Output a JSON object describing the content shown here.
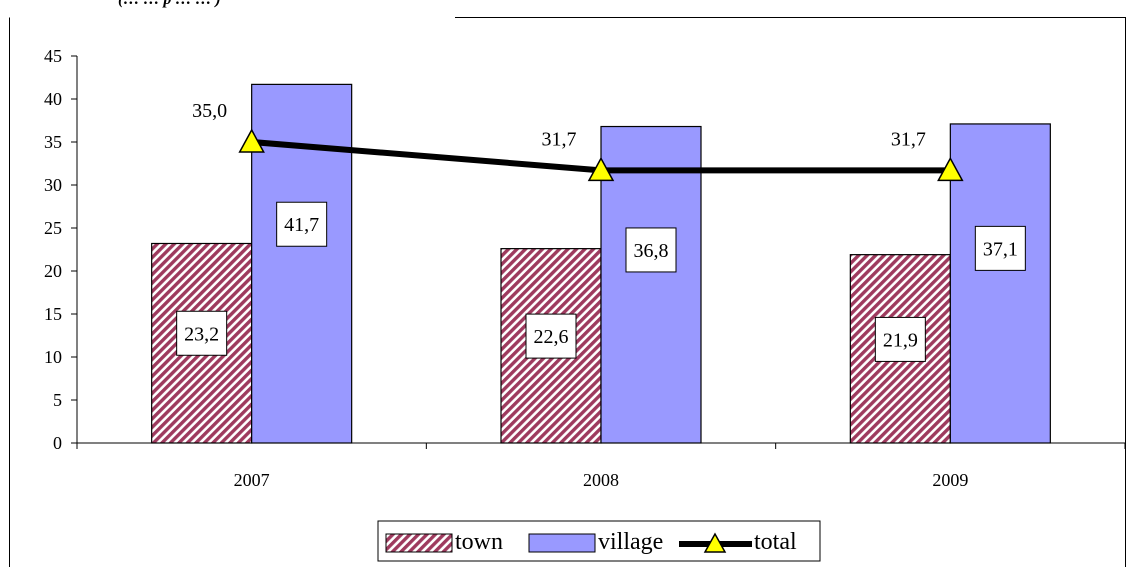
{
  "header_fragment": "(… … p … … )",
  "chart_data": {
    "type": "bar",
    "categories": [
      "2007",
      "2008",
      "2009"
    ],
    "series": [
      {
        "name": "town",
        "kind": "bar",
        "values": [
          23.2,
          22.6,
          21.9
        ],
        "labels": [
          "23,2",
          "22,6",
          "21,9"
        ],
        "color": "#9e3a5e",
        "pattern": "diagonal-hatch"
      },
      {
        "name": "village",
        "kind": "bar",
        "values": [
          41.7,
          36.8,
          37.1
        ],
        "labels": [
          "41,7",
          "36,8",
          "37,1"
        ],
        "color": "#9999ff"
      },
      {
        "name": "total",
        "kind": "line",
        "values": [
          35.0,
          31.7,
          31.7
        ],
        "labels": [
          "35,0",
          "31,7",
          "31,7"
        ],
        "color": "#000000",
        "marker": "triangle",
        "marker_color": "#ffff00"
      }
    ],
    "y_ticks": [
      "0",
      "5",
      "10",
      "15",
      "20",
      "25",
      "30",
      "35",
      "40",
      "45"
    ],
    "ylim": [
      0,
      45
    ],
    "grid": false,
    "legend_position": "bottom"
  }
}
